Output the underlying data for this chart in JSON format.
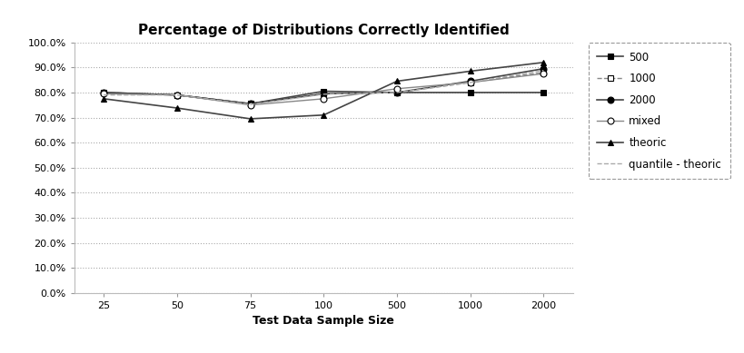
{
  "title": "Percentage of Distributions Correctly Identified",
  "xlabel": "Test Data Sample Size",
  "x_labels": [
    "25",
    "50",
    "75",
    "100",
    "500",
    "1000",
    "2000"
  ],
  "x_values": [
    0,
    1,
    2,
    3,
    4,
    5,
    6
  ],
  "series": [
    {
      "name": "500",
      "values": [
        0.8,
        0.79,
        0.755,
        0.805,
        0.8,
        0.8,
        0.8
      ],
      "color": "#444444",
      "marker": "s",
      "marker_fill": "black",
      "linestyle": "-",
      "linewidth": 1.2
    },
    {
      "name": "1000",
      "values": [
        0.8,
        0.79,
        0.755,
        0.795,
        0.8,
        0.84,
        0.88
      ],
      "color": "#888888",
      "marker": "s",
      "marker_fill": "white",
      "linestyle": "--",
      "linewidth": 1.0
    },
    {
      "name": "2000",
      "values": [
        0.8,
        0.79,
        0.755,
        0.795,
        0.8,
        0.845,
        0.895
      ],
      "color": "#444444",
      "marker": "o",
      "marker_fill": "black",
      "linestyle": "-",
      "linewidth": 1.2
    },
    {
      "name": "mixed",
      "values": [
        0.795,
        0.79,
        0.75,
        0.775,
        0.815,
        0.84,
        0.875
      ],
      "color": "#888888",
      "marker": "o",
      "marker_fill": "white",
      "linestyle": "-",
      "linewidth": 1.0
    },
    {
      "name": "theoric",
      "values": [
        0.775,
        0.738,
        0.695,
        0.71,
        0.845,
        0.885,
        0.92
      ],
      "color": "#444444",
      "marker": "^",
      "marker_fill": "black",
      "linestyle": "-",
      "linewidth": 1.2
    },
    {
      "name": "quantile - theoric",
      "values": [
        0.79,
        0.79,
        0.752,
        0.793,
        0.8,
        0.84,
        0.888
      ],
      "color": "#aaaaaa",
      "marker": "none",
      "marker_fill": "none",
      "linestyle": "--",
      "linewidth": 1.0
    }
  ],
  "ylim": [
    0.0,
    1.0
  ],
  "yticks": [
    0.0,
    0.1,
    0.2,
    0.3,
    0.4,
    0.5,
    0.6,
    0.7,
    0.8,
    0.9,
    1.0
  ],
  "ytick_labels": [
    "0.0%",
    "10.0%",
    "20.0%",
    "30.0%",
    "40.0%",
    "50.0%",
    "60.0%",
    "70.0%",
    "80.0%",
    "90.0%",
    "100.0%"
  ],
  "background_color": "#ffffff",
  "grid_color": "#aaaaaa",
  "title_fontsize": 11,
  "axis_label_fontsize": 9,
  "tick_fontsize": 8,
  "legend_fontsize": 8.5
}
